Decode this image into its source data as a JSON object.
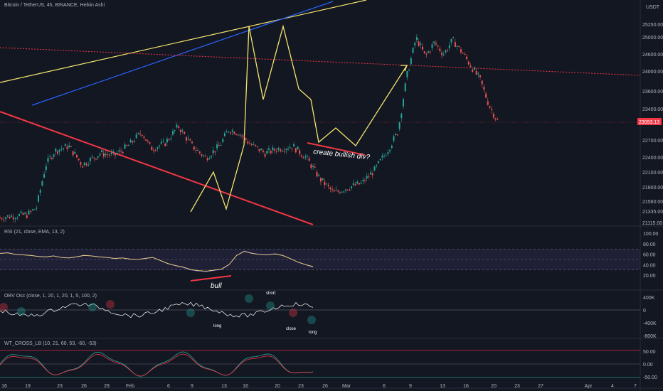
{
  "header": {
    "symbol": "Bitcoin / TetherUS, 4h, BINANCE, Heikin Ashi",
    "currency": "USDT"
  },
  "price_tag": "23093.13",
  "annotations": {
    "bullish_div": "create bullish div?",
    "rsi_bull": "bull",
    "obv_long_1": "long",
    "obv_short": "short",
    "obv_close": "close",
    "obv_long_2": "long"
  },
  "panes": {
    "rsi": {
      "label": "RSI (21, close, EMA, 13, 2)",
      "ticks": [
        "100.00",
        "80.00",
        "60.00",
        "40.00",
        "20.00"
      ]
    },
    "obv": {
      "label": "OBV Osc (close, 1, 20, 1, 20, 1, 5, 100, 2)",
      "ticks": [
        "400K",
        "0",
        "-400K",
        "-800K"
      ]
    },
    "wt": {
      "label": "WT_CROSS_LB (10, 21, 60, 53, -60, -53)",
      "ticks": [
        "50.00",
        "0.00",
        "-50.00"
      ]
    }
  },
  "colors": {
    "background": "#131722",
    "up": "#26a69a",
    "down": "#ef5350",
    "yellow_line": "#f5e46e",
    "blue_line": "#2962ff",
    "red_line": "#f23645",
    "rsi_band": "#7e57c2"
  },
  "chart_data": {
    "type": "candlestick",
    "price_axis_ticks": [
      25250,
      25000,
      24600,
      24000,
      23600,
      23400,
      22700,
      22400,
      22100,
      21800,
      21560,
      21335,
      21115
    ],
    "x_tick_labels": [
      "16",
      "19",
      "23",
      "26",
      "29",
      "Feb",
      "6",
      "9",
      "13",
      "16",
      "20",
      "23",
      "26",
      "Mar",
      "6",
      "9",
      "13",
      "16",
      "20",
      "23",
      "27",
      "Apr",
      "4",
      "7"
    ],
    "current_price": 23093.13,
    "price_path": [
      [
        0,
        21180
      ],
      [
        3,
        21220
      ],
      [
        6,
        21240
      ],
      [
        8,
        21400
      ],
      [
        10,
        22300
      ],
      [
        12,
        22600
      ],
      [
        15,
        22700
      ],
      [
        18,
        22300
      ],
      [
        22,
        22550
      ],
      [
        25,
        22500
      ],
      [
        28,
        22700
      ],
      [
        31,
        23000
      ],
      [
        33,
        22650
      ],
      [
        36,
        22750
      ],
      [
        39,
        23120
      ],
      [
        42,
        22700
      ],
      [
        45,
        22450
      ],
      [
        48,
        22700
      ],
      [
        50,
        23050
      ],
      [
        52,
        23000
      ],
      [
        55,
        22720
      ],
      [
        58,
        22550
      ],
      [
        61,
        22650
      ],
      [
        64,
        22700
      ],
      [
        67,
        22450
      ],
      [
        70,
        22000
      ],
      [
        73,
        21700
      ],
      [
        76,
        21820
      ],
      [
        79,
        21900
      ],
      [
        82,
        22200
      ],
      [
        85,
        22650
      ],
      [
        87,
        23000
      ],
      [
        89,
        24200
      ],
      [
        91,
        25000
      ],
      [
        93,
        24600
      ],
      [
        95,
        24900
      ],
      [
        97,
        24650
      ],
      [
        99,
        24950
      ],
      [
        101,
        24700
      ],
      [
        103,
        24400
      ],
      [
        105,
        24100
      ],
      [
        107,
        23550
      ],
      [
        109,
        23200
      ]
    ],
    "projection_path": [
      [
        109,
        22650
      ],
      [
        112,
        22600
      ],
      [
        116,
        22650
      ],
      [
        120,
        22550
      ],
      [
        125,
        23150
      ],
      [
        131,
        23900
      ]
    ],
    "rsi_series": [
      62,
      63,
      60,
      59,
      58,
      56,
      55,
      57,
      54,
      53,
      55,
      58,
      57,
      55,
      54,
      52,
      53,
      51,
      50,
      52,
      54,
      48,
      42,
      38,
      35,
      30,
      28,
      27,
      29,
      31,
      40,
      58,
      66,
      62,
      60,
      59,
      61,
      58,
      52,
      45,
      40,
      36
    ]
  }
}
